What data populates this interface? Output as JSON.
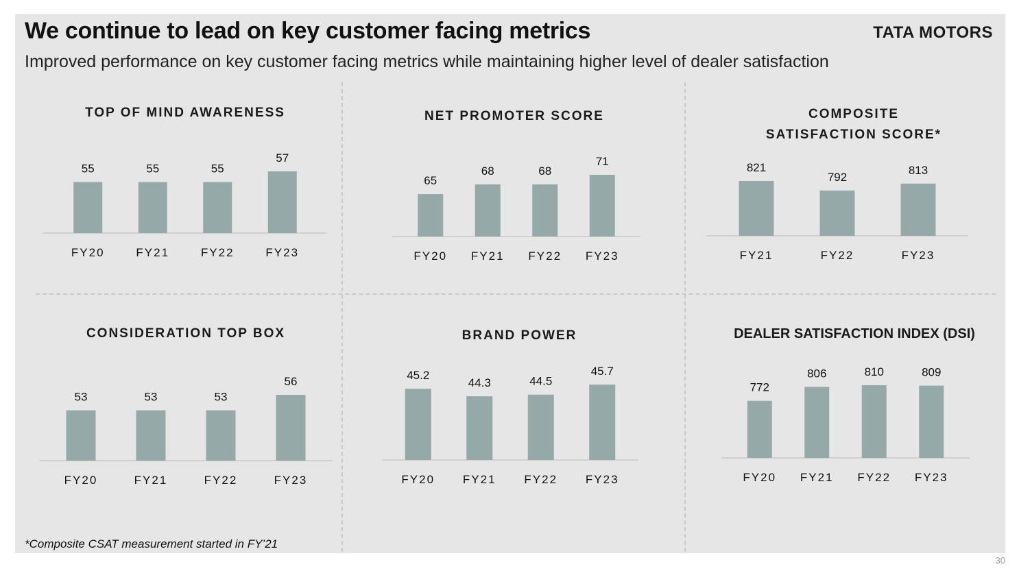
{
  "header": {
    "title": "We continue to lead on key customer facing metrics",
    "subtitle": "Improved performance on key customer facing metrics while maintaining higher level of dealer satisfaction",
    "logo": "TATA MOTORS"
  },
  "footnote": "*Composite CSAT measurement started in FY’21",
  "page_number": "30",
  "colors": {
    "bar": "#95aaa8",
    "axis": "#c8c8c8",
    "panel": "#e6e6e6"
  },
  "chart_data": [
    {
      "type": "bar",
      "title": "TOP OF MIND AWARENESS",
      "categories": [
        "FY20",
        "FY21",
        "FY22",
        "FY23"
      ],
      "values": [
        55,
        55,
        55,
        57
      ],
      "labels": [
        "55",
        "55",
        "55",
        "57"
      ],
      "ylim": [
        0,
        57
      ]
    },
    {
      "type": "bar",
      "title": "NET PROMOTER SCORE",
      "categories": [
        "FY20",
        "FY21",
        "FY22",
        "FY23"
      ],
      "values": [
        65,
        68,
        68,
        71
      ],
      "labels": [
        "65",
        "68",
        "68",
        "71"
      ],
      "ylim": [
        0,
        71
      ]
    },
    {
      "type": "bar",
      "title": "COMPOSITE SATISFACTION SCORE*",
      "categories": [
        "FY21",
        "FY22",
        "FY23"
      ],
      "values": [
        821,
        792,
        813
      ],
      "labels": [
        "821",
        "792",
        "813"
      ],
      "ylim": [
        0,
        821
      ]
    },
    {
      "type": "bar",
      "title": "CONSIDERATION TOP BOX",
      "categories": [
        "FY20",
        "FY21",
        "FY22",
        "FY23"
      ],
      "values": [
        53,
        53,
        53,
        56
      ],
      "labels": [
        "53",
        "53",
        "53",
        "56"
      ],
      "ylim": [
        0,
        56
      ]
    },
    {
      "type": "bar",
      "title": "BRAND POWER",
      "categories": [
        "FY20",
        "FY21",
        "FY22",
        "FY23"
      ],
      "values": [
        45.2,
        44.3,
        44.5,
        45.7
      ],
      "labels": [
        "45.2",
        "44.3",
        "44.5",
        "45.7"
      ],
      "ylim": [
        0,
        45.7
      ]
    },
    {
      "type": "bar",
      "title": "DEALER SATISFACTION INDEX (DSI)",
      "categories": [
        "FY20",
        "FY21",
        "FY22",
        "FY23"
      ],
      "values": [
        772,
        806,
        810,
        809
      ],
      "labels": [
        "772",
        "806",
        "810",
        "809"
      ],
      "ylim": [
        0,
        810
      ]
    }
  ]
}
